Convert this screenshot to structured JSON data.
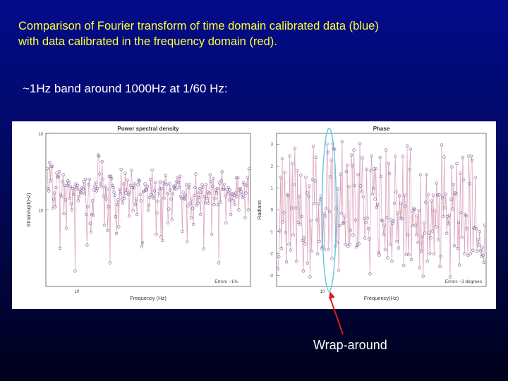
{
  "slide": {
    "title_line1": "Comparison of Fourier transform of time domain calibrated data (blue)",
    "title_line2": "with data calibrated in the frequency domain (red).",
    "subtitle": "~1Hz band around 1000Hz at 1/60 Hz:",
    "callout": "Wrap-around",
    "colors": {
      "title": "#ffff33",
      "text": "#ffffff",
      "arrow": "#d81b1b",
      "highlight": "#5bc8e0",
      "trace": "#d9a0b8",
      "marker": "#7a5fa0"
    }
  },
  "chart_data": [
    {
      "type": "line",
      "title": "Power spectral density",
      "xlabel": "Frequency (Hz)",
      "ylabel": "Strain/sqrt(Hz)",
      "yscale": "log",
      "ylim": [
        1e-19,
        1e-17
      ],
      "y_ticks": [
        "10",
        "10"
      ],
      "x_ticks": [
        "10"
      ],
      "note": "Errors ~1%",
      "grid": false,
      "legend": "none",
      "values": [
        -17.46,
        -17.72,
        -17.75,
        -17.38,
        -17.62,
        -17.43,
        -17.43,
        -17.98,
        -17.86,
        -17.78,
        -17.96,
        -17.71,
        -17.52,
        -17.57,
        -17.57,
        -17.5,
        -18.5,
        -17.8,
        -17.83,
        -17.63,
        -17.54,
        -18.05,
        -17.68,
        -17.87,
        -18.24,
        -17.68,
        -17.62,
        -17.65,
        -17.85,
        -17.69,
        -17.92,
        -18.0,
        -17.72,
        -17.8,
        -17.7,
        -18.8,
        -17.66,
        -17.73,
        -17.68,
        -17.88,
        -17.83,
        -17.73,
        -17.77,
        -17.78,
        -17.71,
        -17.73,
        -17.63,
        -17.79,
        -17.6,
        -18.06,
        -18.46,
        -17.96,
        -17.67,
        -17.6,
        -18.18,
        -18.29,
        -18.06,
        -17.88,
        -18.07,
        -17.74,
        -17.69,
        -17.64,
        -17.75,
        -17.72,
        -17.28,
        -17.3,
        -17.53,
        -17.66,
        -17.7,
        -17.37,
        -17.6,
        -17.82,
        -18.2,
        -17.69,
        -17.86,
        -17.73,
        -18.27,
        -17.96,
        -17.56,
        -18.69,
        -17.56,
        -17.59,
        -17.68,
        -17.71,
        -17.77,
        -17.81,
        -18.09,
        -18.31,
        -17.93,
        -17.87,
        -18.22,
        -17.73,
        -17.79,
        -17.47,
        -17.86,
        -17.91,
        -17.66,
        -17.85,
        -17.52,
        -17.78,
        -17.74,
        -17.61,
        -17.8,
        -18.08,
        -17.77,
        -17.68,
        -17.48,
        -17.71,
        -18.01,
        -17.71,
        -17.66,
        -17.93,
        -17.86,
        -18.06,
        -17.67,
        -17.61,
        -17.62,
        -17.8,
        -17.88,
        -18.48,
        -18.43,
        -17.76,
        -17.76,
        -17.66,
        -17.74,
        -17.74,
        -17.69,
        -18.01,
        -17.94,
        -17.84,
        -17.6,
        -17.8,
        -17.48,
        -17.82,
        -17.85,
        -17.75,
        -17.64,
        -18.32,
        -18.04,
        -17.89,
        -17.79,
        -17.73,
        -17.63,
        -18.35,
        -17.72,
        -18.4,
        -17.65,
        -17.85,
        -17.64,
        -17.55,
        -17.67,
        -17.79,
        -18.17,
        -17.99,
        -17.66,
        -17.74,
        -17.86,
        -18.13,
        -17.79,
        -17.69,
        -17.72,
        -17.68,
        -17.73,
        -17.63,
        -17.58,
        -17.64,
        -17.71,
        -17.56,
        -17.82,
        -17.85,
        -18.28,
        -17.77,
        -17.85,
        -17.86,
        -17.81,
        -17.67,
        -18.42,
        -17.95,
        -17.71,
        -17.67,
        -17.91,
        -18.1,
        -17.86,
        -17.98,
        -18.19,
        -17.81,
        -17.71,
        -17.53,
        -17.94,
        -17.77,
        -17.91,
        -17.84,
        -17.72,
        -18.06,
        -17.77,
        -17.67,
        -17.71,
        -18.51,
        -17.82,
        -17.91,
        -17.67,
        -17.85,
        -17.77,
        -17.91,
        -17.78,
        -17.54,
        -17.63,
        -18.32,
        -17.69,
        -17.59,
        -17.93,
        -17.85,
        -17.74,
        -17.78,
        -17.72,
        -17.93,
        -18.69,
        -17.65,
        -17.9,
        -17.62,
        -17.5,
        -17.73,
        -17.73,
        -17.67,
        -17.82,
        -18.17,
        -17.73,
        -17.79,
        -17.71,
        -17.87,
        -17.74,
        -18.06,
        -17.79,
        -17.88,
        -17.79,
        -17.81,
        -17.93,
        -17.78,
        -17.58,
        -17.83,
        -17.58,
        -18.0,
        -17.74,
        -17.72,
        -17.76,
        -17.8,
        -17.84,
        -17.64,
        -17.67,
        -18.1,
        -17.78,
        -17.68,
        -17.58,
        -18.0,
        -17.46
      ]
    },
    {
      "type": "line",
      "title": "Phase",
      "xlabel": "Frequency(Hz)",
      "ylabel": "Radians",
      "ylim": [
        -3.5,
        3.5
      ],
      "y_ticks": [
        3,
        2,
        1,
        0,
        -1,
        -2,
        -3
      ],
      "x_ticks": [
        "10"
      ],
      "note": "Errors ~3 degrees",
      "grid": false,
      "legend": "none",
      "values": [
        -2.7,
        -2.14,
        -0.96,
        1.48,
        -1.76,
        2.34,
        -0.55,
        -0.13,
        1.73,
        -1.04,
        -2.38,
        0.71,
        0.65,
        -1.57,
        2.46,
        -1.84,
        0.09,
        2.11,
        -1.15,
        1.16,
        2.82,
        0.09,
        -2.36,
        1.79,
        -0.56,
        0.63,
        -0.66,
        1.59,
        -0.3,
        -1.4,
        -2.8,
        -1.26,
        -1.55,
        1.49,
        0.77,
        -2.44,
        0.61,
        1.09,
        -3.06,
        -0.47,
        -1.89,
        1.39,
        2.91,
        0.28,
        1.32,
        2.41,
        -0.45,
        -2.01,
        0.28,
        -1.44,
        0.46,
        0.63,
        -1.76,
        -1.69,
        -0.15,
        -1.82,
        -0.29,
        0.05,
        3.02,
        2.64,
        -1.81,
        -0.08,
        1.52,
        2.28,
        -2.23,
        3.03,
        2.79,
        2.77,
        -1.65,
        0.05,
        -1.49,
        0.97,
        -2.77,
        -0.72,
        1.64,
        -0.17,
        3.12,
        -0.63,
        -0.58,
        -0.29,
        -1.58,
        1.76,
        2.05,
        -1.65,
        1.07,
        -1.57,
        -0.93,
        2.51,
        2.01,
        -1.16,
        2.74,
        1.12,
        -0.46,
        -1.7,
        -1.61,
        1.62,
        -1.54,
        3.04,
        1.1,
        0.82,
        2.38,
        0.6,
        -0.4,
        -1.29,
        -0.57,
        1.86,
        -0.37,
        -0.86,
        -1.33,
        -2.93,
        1.79,
        2.46,
        0.72,
        0.98,
        1.87,
        0.49,
        1.89,
        0.11,
        0.25,
        -1.95,
        -2.06,
        2.4,
        1.54,
        -0.47,
        -0.51,
        -1.11,
        -0.69,
        -1.82,
        2.74,
        -0.35,
        -2.19,
        2.11,
        1.66,
        -1.58,
        -0.45,
        -2.35,
        -0.63,
        -0.51,
        0.31,
        2.45,
        0.82,
        -1.44,
        -0.14,
        -1.74,
        0.65,
        -0.38,
        0.31,
        -0.41,
        2.45,
        -2.53,
        0.67,
        0.17,
        -2.05,
        2.93,
        -1.13,
        -2.05,
        1.84,
        2.78,
        -2.27,
        -0.05,
        -0.73,
        0.08,
        0.02,
        -0.69,
        -1.14,
        -0.28,
        -1.5,
        -0.03,
        -2.65,
        1.61,
        -1.88,
        -1.21,
        -3.04,
        -0.6,
        -1.06,
        0.35,
        1.62,
        -2.35,
        0.71,
        -1.06,
        -1.98,
        -1.28,
        0.41,
        -0.97,
        0.67,
        -2.02,
        -0.04,
        -0.77,
        1.23,
        0.67,
        -1.37,
        0.69,
        -2.59,
        -2.12,
        2.97,
        0.56,
        -0.3,
        2.42,
        0.1,
        0.73,
        -1.07,
        -0.31,
        -0.64,
        -0.24,
        -3.07,
        0.47,
        1.97,
        0.04,
        1.17,
        -1.64,
        0.77,
        0.73,
        2.12,
        -1.76,
        -0.56,
        -2.52,
        1.68,
        -0.11,
        -1.26,
        2.4,
        1.37,
        -2.0,
        -0.21,
        -0.27,
        -0.86,
        -2.08,
        2.46,
        1.2,
        -2.01,
        2.47,
        2.27,
        -1.85,
        -0.84,
        -0.81,
        1.48,
        -0.86,
        -1.88,
        -1.36,
        -1.61,
        -0.99,
        -1.86,
        -2.13,
        -1.7,
        -2.07,
        -2.4,
        -0.7
      ]
    }
  ]
}
